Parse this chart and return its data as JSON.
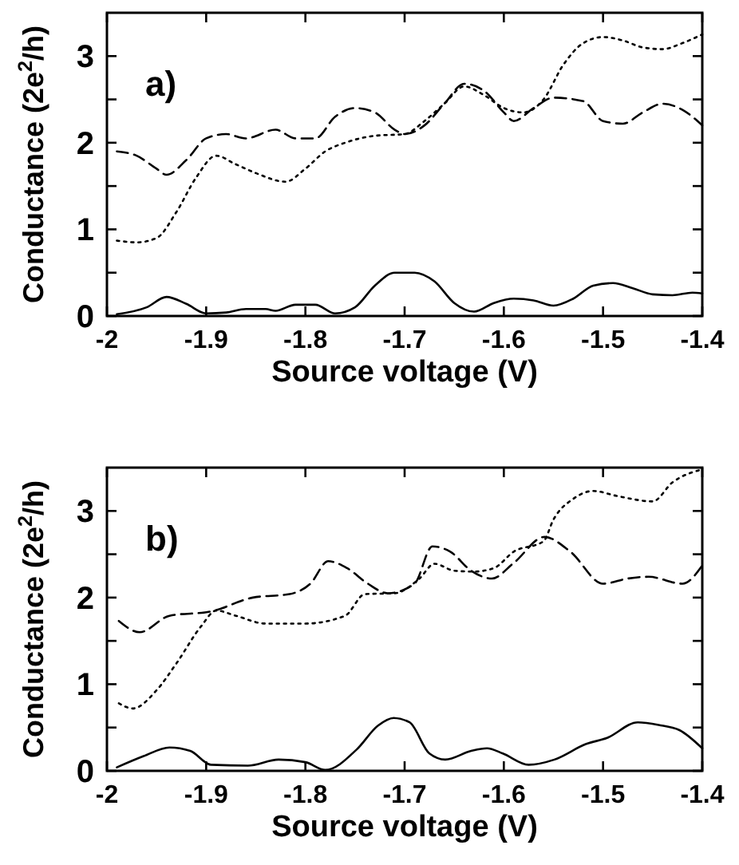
{
  "chart_data": [
    {
      "type": "line",
      "annotations": [
        "a)"
      ],
      "xlabel": "Source voltage  (V)",
      "ylabel": "Conductance  (2e$^{2}$/h)",
      "xlim": [
        -2,
        -1.4
      ],
      "ylim": [
        0,
        3.5
      ],
      "xticks": [
        -2,
        -1.9,
        -1.8,
        -1.7,
        -1.6,
        -1.5,
        -1.4
      ],
      "yticks": [
        0,
        {
          "value": 0.5,
          "label": null
        },
        1,
        {
          "value": 1.5,
          "label": null
        },
        2,
        {
          "value": 2.5,
          "label": null
        },
        3
      ],
      "grid": false,
      "marker": "none",
      "series": [
        {
          "color": "#000000",
          "line_style": "solid",
          "x": [
            -1.99,
            -1.96,
            -1.94,
            -1.92,
            -1.9,
            -1.88,
            -1.86,
            -1.84,
            -1.83,
            -1.81,
            -1.79,
            -1.77,
            -1.75,
            -1.73,
            -1.71,
            -1.69,
            -1.67,
            -1.65,
            -1.63,
            -1.61,
            -1.59,
            -1.57,
            -1.55,
            -1.53,
            -1.51,
            -1.49,
            -1.47,
            -1.45,
            -1.43,
            -1.41,
            -1.4
          ],
          "values": [
            0.02,
            0.1,
            0.22,
            0.14,
            0.03,
            0.04,
            0.08,
            0.08,
            0.06,
            0.13,
            0.13,
            0.03,
            0.1,
            0.35,
            0.5,
            0.5,
            0.4,
            0.15,
            0.05,
            0.15,
            0.2,
            0.18,
            0.12,
            0.2,
            0.35,
            0.38,
            0.32,
            0.25,
            0.24,
            0.27,
            0.26
          ]
        },
        {
          "color": "#000000",
          "line_style": "dashed",
          "x": [
            -1.99,
            -1.97,
            -1.95,
            -1.94,
            -1.92,
            -1.9,
            -1.88,
            -1.86,
            -1.83,
            -1.81,
            -1.79,
            -1.77,
            -1.75,
            -1.73,
            -1.71,
            -1.7,
            -1.68,
            -1.66,
            -1.64,
            -1.62,
            -1.6,
            -1.59,
            -1.57,
            -1.55,
            -1.52,
            -1.5,
            -1.48,
            -1.46,
            -1.44,
            -1.42,
            -1.4
          ],
          "values": [
            1.9,
            1.85,
            1.7,
            1.63,
            1.8,
            2.05,
            2.1,
            2.05,
            2.15,
            2.05,
            2.05,
            2.3,
            2.4,
            2.35,
            2.15,
            2.1,
            2.2,
            2.45,
            2.68,
            2.6,
            2.35,
            2.25,
            2.4,
            2.52,
            2.48,
            2.25,
            2.22,
            2.35,
            2.45,
            2.38,
            2.2
          ]
        },
        {
          "color": "#000000",
          "line_style": "dotted",
          "x": [
            -1.99,
            -1.97,
            -1.95,
            -1.93,
            -1.91,
            -1.89,
            -1.87,
            -1.85,
            -1.82,
            -1.8,
            -1.78,
            -1.76,
            -1.73,
            -1.7,
            -1.68,
            -1.66,
            -1.64,
            -1.62,
            -1.6,
            -1.58,
            -1.56,
            -1.54,
            -1.52,
            -1.5,
            -1.48,
            -1.46,
            -1.44,
            -1.42,
            -1.4
          ],
          "values": [
            0.87,
            0.85,
            0.9,
            1.2,
            1.6,
            1.85,
            1.75,
            1.65,
            1.55,
            1.7,
            1.9,
            2.0,
            2.08,
            2.1,
            2.25,
            2.45,
            2.65,
            2.55,
            2.4,
            2.35,
            2.5,
            2.9,
            3.15,
            3.22,
            3.18,
            3.1,
            3.08,
            3.15,
            3.25
          ]
        }
      ]
    },
    {
      "type": "line",
      "annotations": [
        "b)"
      ],
      "xlabel": "Source voltage  (V)",
      "ylabel": "Conductance  (2e$^{2}$/h)",
      "xlim": [
        -2,
        -1.4
      ],
      "ylim": [
        0,
        3.5
      ],
      "xticks": [
        -2,
        -1.9,
        -1.8,
        -1.7,
        -1.6,
        -1.5,
        -1.4
      ],
      "yticks": [
        0,
        {
          "value": 0.5,
          "label": null
        },
        1,
        {
          "value": 1.5,
          "label": null
        },
        2,
        {
          "value": 2.5,
          "label": null
        },
        3
      ],
      "grid": false,
      "marker": "none",
      "series": [
        {
          "color": "#000000",
          "line_style": "solid",
          "x": [
            -1.99,
            -1.963,
            -1.937,
            -1.916,
            -1.895,
            -1.858,
            -1.827,
            -1.8,
            -1.78,
            -1.748,
            -1.727,
            -1.711,
            -1.695,
            -1.675,
            -1.659,
            -1.633,
            -1.617,
            -1.601,
            -1.575,
            -1.549,
            -1.517,
            -1.496,
            -1.465,
            -1.444,
            -1.423,
            -1.4
          ],
          "values": [
            0.04,
            0.17,
            0.27,
            0.23,
            0.07,
            0.06,
            0.13,
            0.1,
            0.01,
            0.25,
            0.52,
            0.61,
            0.56,
            0.2,
            0.13,
            0.23,
            0.26,
            0.2,
            0.07,
            0.13,
            0.31,
            0.38,
            0.56,
            0.53,
            0.47,
            0.26
          ]
        },
        {
          "color": "#000000",
          "line_style": "dashed",
          "x": [
            -1.988,
            -1.967,
            -1.937,
            -1.895,
            -1.853,
            -1.816,
            -1.795,
            -1.777,
            -1.758,
            -1.737,
            -1.717,
            -1.69,
            -1.672,
            -1.654,
            -1.633,
            -1.612,
            -1.59,
            -1.559,
            -1.533,
            -1.5,
            -1.475,
            -1.454,
            -1.42,
            -1.4
          ],
          "values": [
            1.73,
            1.6,
            1.79,
            1.84,
            2.0,
            2.04,
            2.16,
            2.42,
            2.34,
            2.16,
            2.05,
            2.16,
            2.59,
            2.53,
            2.31,
            2.22,
            2.4,
            2.7,
            2.53,
            2.16,
            2.22,
            2.24,
            2.16,
            2.37
          ]
        },
        {
          "color": "#000000",
          "line_style": "dotted",
          "x": [
            -1.988,
            -1.974,
            -1.95,
            -1.93,
            -1.905,
            -1.89,
            -1.87,
            -1.84,
            -1.8,
            -1.76,
            -1.74,
            -1.71,
            -1.685,
            -1.67,
            -1.65,
            -1.63,
            -1.61,
            -1.59,
            -1.56,
            -1.55,
            -1.53,
            -1.51,
            -1.485,
            -1.45,
            -1.43,
            -1.4
          ],
          "values": [
            0.78,
            0.72,
            0.93,
            1.24,
            1.67,
            1.85,
            1.79,
            1.7,
            1.7,
            1.79,
            2.04,
            2.05,
            2.22,
            2.39,
            2.31,
            2.3,
            2.34,
            2.53,
            2.65,
            2.9,
            3.14,
            3.23,
            3.17,
            3.11,
            3.33,
            3.48
          ]
        }
      ]
    }
  ]
}
